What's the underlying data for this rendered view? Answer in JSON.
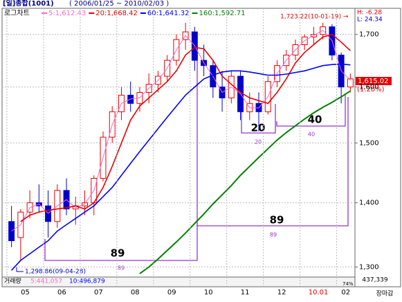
{
  "chart_data": {
    "type": "candlestick",
    "title": "[일]종합(1001)",
    "subtitle": "( 2006/01/25 ~ 2010/02/03 )",
    "scale_label": "로그차트",
    "log_scale": true,
    "grid": true,
    "up_color": "#e60000",
    "down_color": "#0000cc",
    "categories": [
      null,
      null,
      "05",
      null,
      null,
      null,
      "06",
      null,
      null,
      null,
      "07",
      null,
      null,
      null,
      "08",
      null,
      null,
      null,
      "09",
      null,
      null,
      null,
      "10",
      null,
      null,
      null,
      "11",
      null,
      null,
      null,
      "12",
      null,
      null,
      null,
      "10.01",
      null,
      null,
      "02"
    ],
    "open": [
      1370,
      1345,
      1385,
      1400,
      1395,
      1370,
      1420,
      1390,
      1395,
      1400,
      1440,
      1510,
      1555,
      1585,
      1570,
      1590,
      1605,
      1620,
      1650,
      1690,
      1705,
      1650,
      1640,
      1600,
      1580,
      1620,
      1555,
      1570,
      1555,
      1610,
      1640,
      1660,
      1680,
      1695,
      1700,
      1715,
      1660,
      1600
    ],
    "high": [
      1395,
      1390,
      1420,
      1430,
      1420,
      1430,
      1440,
      1410,
      1420,
      1445,
      1520,
      1565,
      1600,
      1610,
      1600,
      1625,
      1630,
      1660,
      1700,
      1723,
      1715,
      1680,
      1650,
      1630,
      1630,
      1630,
      1590,
      1590,
      1620,
      1650,
      1670,
      1690,
      1700,
      1715,
      1723,
      1720,
      1665,
      1625
    ],
    "low": [
      1330,
      1310,
      1375,
      1385,
      1345,
      1360,
      1380,
      1365,
      1380,
      1380,
      1435,
      1500,
      1540,
      1555,
      1555,
      1570,
      1590,
      1610,
      1640,
      1670,
      1630,
      1620,
      1580,
      1555,
      1570,
      1540,
      1540,
      1520,
      1550,
      1600,
      1630,
      1650,
      1670,
      1680,
      1690,
      1650,
      1570,
      1590
    ],
    "close": [
      1340,
      1385,
      1400,
      1395,
      1370,
      1420,
      1390,
      1395,
      1400,
      1440,
      1510,
      1555,
      1585,
      1570,
      1590,
      1605,
      1620,
      1650,
      1690,
      1705,
      1650,
      1640,
      1600,
      1580,
      1620,
      1555,
      1570,
      1555,
      1610,
      1640,
      1660,
      1680,
      1695,
      1700,
      1715,
      1660,
      1600,
      1615.02
    ],
    "series": [
      {
        "name": "5:1,612.43",
        "color": "#ff66cc",
        "width": 1,
        "values": [
          1355,
          1365,
          1392,
          1398,
          1383,
          1395,
          1405,
          1392,
          1398,
          1420,
          1475,
          1532,
          1570,
          1578,
          1580,
          1598,
          1612,
          1635,
          1670,
          1698,
          1678,
          1645,
          1620,
          1590,
          1600,
          1588,
          1562,
          1562,
          1582,
          1625,
          1650,
          1670,
          1688,
          1698,
          1708,
          1688,
          1630,
          1612.43
        ]
      },
      {
        "name": "20:1,668.42",
        "color": "#e60000",
        "width": 1.6,
        "values": [
          null,
          1370,
          1380,
          1385,
          1388,
          1390,
          1392,
          1395,
          1390,
          1400,
          1425,
          1460,
          1500,
          1540,
          1565,
          1580,
          1595,
          1610,
          1630,
          1660,
          1675,
          1672,
          1650,
          1620,
          1605,
          1590,
          1580,
          1575,
          1570,
          1590,
          1615,
          1645,
          1665,
          1680,
          1695,
          1700,
          1685,
          1668.42
        ]
      },
      {
        "name": "60:1,641.32",
        "color": "#0000ff",
        "width": 1.6,
        "values": [
          1295,
          1310,
          1320,
          1330,
          1340,
          1355,
          1365,
          1375,
          1385,
          1395,
          1410,
          1425,
          1445,
          1465,
          1485,
          1505,
          1525,
          1545,
          1565,
          1585,
          1600,
          1615,
          1622,
          1628,
          1630,
          1630,
          1628,
          1625,
          1622,
          1622,
          1624,
          1627,
          1630,
          1635,
          1640,
          1642,
          1643,
          1641.32
        ]
      },
      {
        "name": "160:1,592.71",
        "color": "#008000",
        "width": 2,
        "values": [
          null,
          null,
          null,
          null,
          null,
          null,
          null,
          null,
          null,
          null,
          null,
          null,
          null,
          null,
          1290,
          1300,
          1312,
          1325,
          1338,
          1352,
          1367,
          1382,
          1398,
          1413,
          1428,
          1445,
          1460,
          1475,
          1490,
          1505,
          1518,
          1530,
          1542,
          1553,
          1563,
          1572,
          1582,
          1592.71
        ]
      }
    ],
    "ylim": [
      1285,
      1752
    ],
    "yticks": [
      {
        "value": 1300,
        "label": "1,300"
      },
      {
        "value": 1400,
        "label": "1,400"
      },
      {
        "value": 1500,
        "label": "1,500"
      },
      {
        "value": 1600,
        "label": "1,600"
      },
      {
        "value": 1700,
        "label": "1,700"
      }
    ],
    "annotations": {
      "high_note": "1,723.22(10-01-19) →",
      "low_note": "1,298.86(09-04-28)",
      "last_price": "1,615.02",
      "change": "(1.20%)",
      "h": "H: -6.28",
      "l": "L: 24.34",
      "cycles": [
        "89",
        "89",
        "20",
        "40"
      ]
    },
    "volume": {
      "label": "거래량",
      "ma5": "5:441,057",
      "ma10": "10:496,879",
      "last": "437,339",
      "ratio": "74%"
    },
    "footer": "장마감"
  }
}
